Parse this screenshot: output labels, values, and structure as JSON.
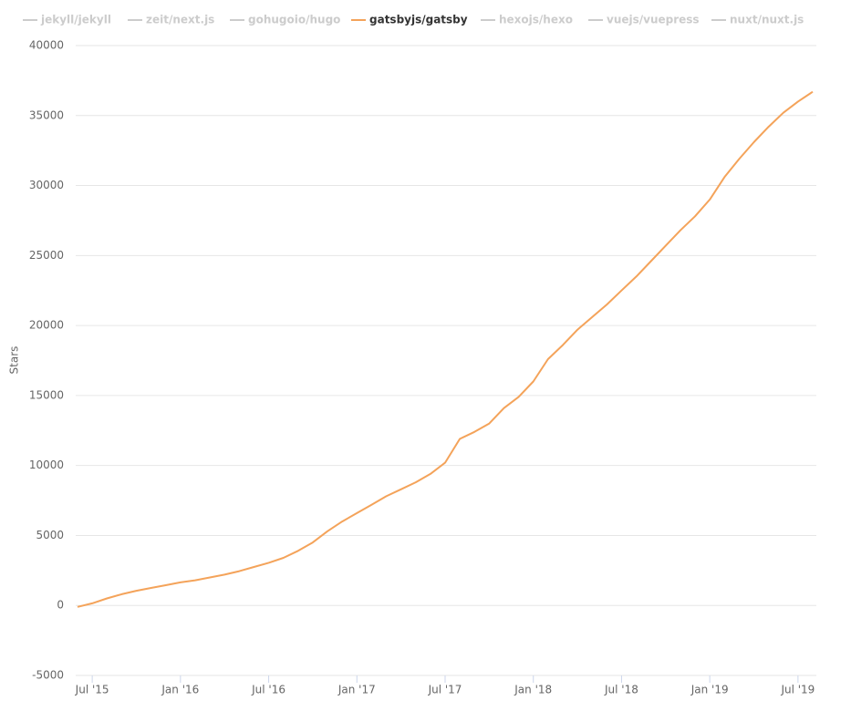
{
  "chart_data": {
    "type": "line",
    "y_label": "Stars",
    "x": [
      "2015-06",
      "2015-07",
      "2015-08",
      "2015-09",
      "2015-10",
      "2015-11",
      "2015-12",
      "2016-01",
      "2016-02",
      "2016-03",
      "2016-04",
      "2016-05",
      "2016-06",
      "2016-07",
      "2016-08",
      "2016-09",
      "2016-10",
      "2016-11",
      "2016-12",
      "2017-01",
      "2017-02",
      "2017-03",
      "2017-04",
      "2017-05",
      "2017-06",
      "2017-07",
      "2017-08",
      "2017-09",
      "2017-10",
      "2017-11",
      "2017-12",
      "2018-01",
      "2018-02",
      "2018-03",
      "2018-04",
      "2018-05",
      "2018-06",
      "2018-07",
      "2018-08",
      "2018-09",
      "2018-10",
      "2018-11",
      "2018-12",
      "2019-01",
      "2019-02",
      "2019-03",
      "2019-04",
      "2019-05",
      "2019-06",
      "2019-07",
      "2019-08"
    ],
    "series": [
      {
        "name": "jekyll/jekyll",
        "visible": false
      },
      {
        "name": "zeit/next.js",
        "visible": false
      },
      {
        "name": "gohugoio/hugo",
        "visible": false
      },
      {
        "name": "gatsbyjs/gatsby",
        "visible": true,
        "color": "#f4a35a",
        "values": [
          -100,
          150,
          500,
          800,
          1050,
          1250,
          1450,
          1650,
          1800,
          2000,
          2200,
          2450,
          2750,
          3050,
          3400,
          3900,
          4500,
          5300,
          6000,
          6600,
          7200,
          7800,
          8300,
          8800,
          9400,
          10200,
          11900,
          12400,
          13000,
          14100,
          14900,
          16000,
          17600,
          18600,
          19700,
          20600,
          21500,
          22500,
          23500,
          24600,
          25700,
          26800,
          27800,
          29000,
          30600,
          31900,
          33100,
          34200,
          35200,
          36000,
          36700
        ]
      },
      {
        "name": "hexojs/hexo",
        "visible": false
      },
      {
        "name": "vuejs/vuepress",
        "visible": false
      },
      {
        "name": "nuxt/nuxt.js",
        "visible": false
      }
    ],
    "xlim": [
      "2015-06",
      "2019-08"
    ],
    "xticks": [
      {
        "value": "2015-07",
        "label": "Jul '15"
      },
      {
        "value": "2016-01",
        "label": "Jan '16"
      },
      {
        "value": "2016-07",
        "label": "Jul '16"
      },
      {
        "value": "2017-01",
        "label": "Jan '17"
      },
      {
        "value": "2017-07",
        "label": "Jul '17"
      },
      {
        "value": "2018-01",
        "label": "Jan '18"
      },
      {
        "value": "2018-07",
        "label": "Jul '18"
      },
      {
        "value": "2019-01",
        "label": "Jan '19"
      },
      {
        "value": "2019-07",
        "label": "Jul '19"
      }
    ],
    "ylim": [
      -5000,
      40000
    ],
    "yticks": [
      -5000,
      0,
      5000,
      10000,
      15000,
      20000,
      25000,
      30000,
      35000,
      40000
    ],
    "grid": true
  }
}
